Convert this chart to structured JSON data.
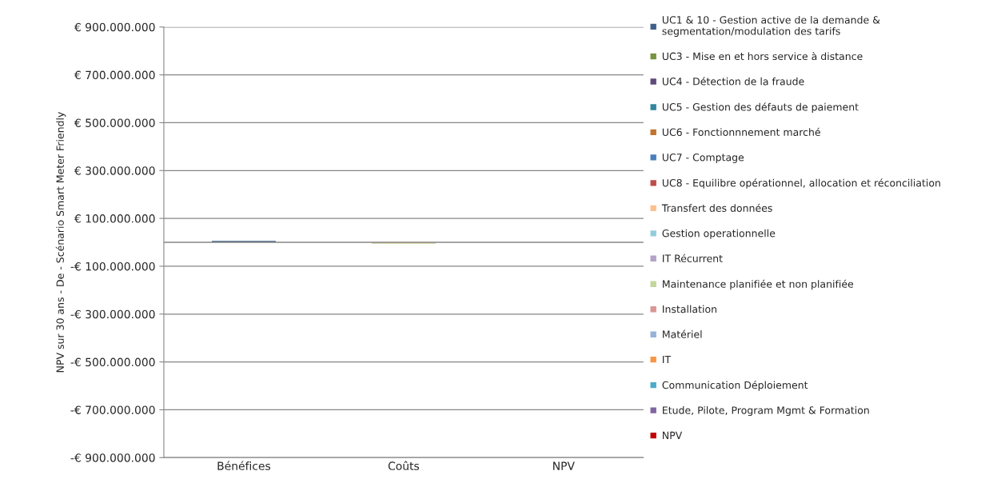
{
  "chart_data": {
    "type": "bar",
    "stacked": true,
    "ylabel": "NPV sur 30 ans - De - Scénario Smart Meter Friendly",
    "categories": [
      "Bénéfices",
      "Coûts",
      "NPV"
    ],
    "series": [
      {
        "name": "UC1 & 10 - Gestion active de la demande &\nsegmentation/modulation des tarifs",
        "color": "#3f5f8a",
        "values": [
          6000000,
          null,
          null
        ]
      },
      {
        "name": "UC3 - Mise en et hors service à distance",
        "color": "#77933c",
        "values": [
          null,
          null,
          null
        ]
      },
      {
        "name": "UC4 - Détection de la fraude",
        "color": "#5f4a7a",
        "values": [
          null,
          null,
          null
        ]
      },
      {
        "name": "UC5 - Gestion des défauts de paiement",
        "color": "#31859c",
        "values": [
          null,
          null,
          null
        ]
      },
      {
        "name": "UC6 - Fonctionnnement marché",
        "color": "#c0742f",
        "values": [
          null,
          null,
          null
        ]
      },
      {
        "name": "UC7 - Comptage",
        "color": "#4a7ebb",
        "values": [
          null,
          null,
          null
        ]
      },
      {
        "name": "UC8 - Equilibre opérationnel, allocation et réconciliation",
        "color": "#be4b48",
        "values": [
          null,
          null,
          null
        ]
      },
      {
        "name": "Transfert des données",
        "color": "#fac08f",
        "values": [
          null,
          -3000000,
          null
        ]
      },
      {
        "name": "Gestion operationnelle",
        "color": "#93cddd",
        "values": [
          null,
          null,
          null
        ]
      },
      {
        "name": "IT Récurrent",
        "color": "#b3a2c7",
        "values": [
          null,
          null,
          null
        ]
      },
      {
        "name": "Maintenance planifiée et non planifiée",
        "color": "#c3d69b",
        "values": [
          null,
          -3000000,
          null
        ]
      },
      {
        "name": "Installation",
        "color": "#d99694",
        "values": [
          null,
          null,
          null
        ]
      },
      {
        "name": "Matériel",
        "color": "#95b3d7",
        "values": [
          null,
          null,
          null
        ]
      },
      {
        "name": "IT",
        "color": "#f79646",
        "values": [
          null,
          null,
          null
        ]
      },
      {
        "name": "Communication Déploiement",
        "color": "#4bacc6",
        "values": [
          null,
          null,
          null
        ]
      },
      {
        "name": "Etude, Pilote, Program Mgmt & Formation",
        "color": "#8064a2",
        "values": [
          null,
          null,
          null
        ]
      },
      {
        "name": "NPV",
        "color": "#c00000",
        "values": [
          null,
          null,
          0
        ]
      }
    ],
    "ylim": [
      -900000000,
      900000000
    ],
    "yticks": [
      {
        "value": -900000000,
        "label": "-€ 900.000.000"
      },
      {
        "value": -700000000,
        "label": "-€ 700.000.000"
      },
      {
        "value": -500000000,
        "label": "-€ 500.000.000"
      },
      {
        "value": -300000000,
        "label": "-€ 300.000.000"
      },
      {
        "value": -100000000,
        "label": "-€ 100.000.000"
      },
      {
        "value": 100000000,
        "label": "€ 100.000.000"
      },
      {
        "value": 300000000,
        "label": "€ 300.000.000"
      },
      {
        "value": 500000000,
        "label": "€ 500.000.000"
      },
      {
        "value": 700000000,
        "label": "€ 700.000.000"
      },
      {
        "value": 900000000,
        "label": "€ 900.000.000"
      }
    ],
    "ref_lines": [
      {
        "axis": "y",
        "value": 0,
        "color": "#868686"
      }
    ],
    "grid": "y",
    "legend": "right"
  }
}
